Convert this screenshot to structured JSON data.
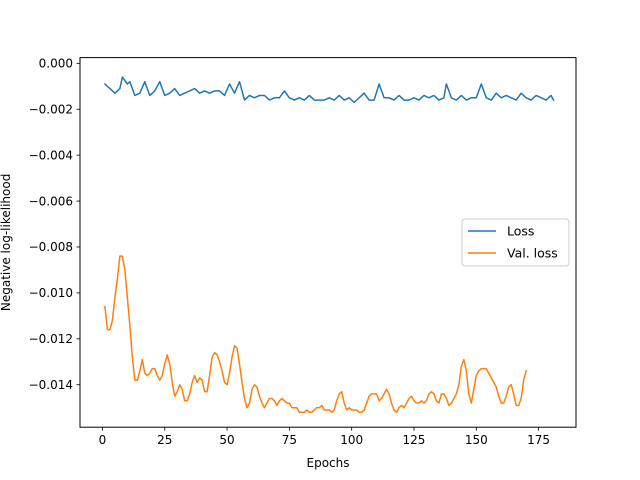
{
  "chart_data": {
    "type": "line",
    "title": "",
    "xlabel": "Epochs",
    "ylabel": "Negative log-likelihood",
    "xlim": [
      -9,
      190
    ],
    "ylim": [
      -0.01585,
      0.00025
    ],
    "xticks": [
      0,
      25,
      50,
      75,
      100,
      125,
      150,
      175
    ],
    "xtick_labels": [
      "0",
      "25",
      "50",
      "75",
      "100",
      "125",
      "150",
      "175"
    ],
    "yticks": [
      0.0,
      -0.002,
      -0.004,
      -0.006,
      -0.008,
      -0.01,
      -0.012,
      -0.014
    ],
    "ytick_labels": [
      "0.000",
      "−0.002",
      "−0.004",
      "−0.006",
      "−0.008",
      "−0.010",
      "−0.012",
      "−0.014"
    ],
    "grid": false,
    "legend_position": "center-right",
    "series": [
      {
        "name": "Loss",
        "color": "#1f77b4",
        "points": [
          [
            1,
            -0.0009
          ],
          [
            3,
            -0.0011
          ],
          [
            5,
            -0.0013
          ],
          [
            7,
            -0.0011
          ],
          [
            8,
            -0.0006
          ],
          [
            10,
            -0.0009
          ],
          [
            11,
            -0.0008
          ],
          [
            13,
            -0.0014
          ],
          [
            15,
            -0.0013
          ],
          [
            17,
            -0.0008
          ],
          [
            19,
            -0.0014
          ],
          [
            21,
            -0.0012
          ],
          [
            23,
            -0.0008
          ],
          [
            25,
            -0.0014
          ],
          [
            27,
            -0.0013
          ],
          [
            29,
            -0.0011
          ],
          [
            31,
            -0.0014
          ],
          [
            33,
            -0.0013
          ],
          [
            35,
            -0.0012
          ],
          [
            37,
            -0.0011
          ],
          [
            39,
            -0.0013
          ],
          [
            41,
            -0.0012
          ],
          [
            43,
            -0.0013
          ],
          [
            45,
            -0.0012
          ],
          [
            47,
            -0.0012
          ],
          [
            49,
            -0.0014
          ],
          [
            51,
            -0.0009
          ],
          [
            53,
            -0.0013
          ],
          [
            55,
            -0.0008
          ],
          [
            57,
            -0.0016
          ],
          [
            59,
            -0.0014
          ],
          [
            61,
            -0.0015
          ],
          [
            63,
            -0.0014
          ],
          [
            65,
            -0.0014
          ],
          [
            67,
            -0.0016
          ],
          [
            69,
            -0.0015
          ],
          [
            71,
            -0.0015
          ],
          [
            73,
            -0.0012
          ],
          [
            75,
            -0.0015
          ],
          [
            77,
            -0.0016
          ],
          [
            79,
            -0.0015
          ],
          [
            81,
            -0.0016
          ],
          [
            83,
            -0.0014
          ],
          [
            85,
            -0.0016
          ],
          [
            87,
            -0.0016
          ],
          [
            89,
            -0.0016
          ],
          [
            91,
            -0.0015
          ],
          [
            93,
            -0.0016
          ],
          [
            95,
            -0.0014
          ],
          [
            97,
            -0.0016
          ],
          [
            99,
            -0.0015
          ],
          [
            101,
            -0.0017
          ],
          [
            103,
            -0.0015
          ],
          [
            105,
            -0.0013
          ],
          [
            107,
            -0.0016
          ],
          [
            109,
            -0.0016
          ],
          [
            111,
            -0.0009
          ],
          [
            113,
            -0.0015
          ],
          [
            115,
            -0.0015
          ],
          [
            117,
            -0.0016
          ],
          [
            119,
            -0.0014
          ],
          [
            121,
            -0.0016
          ],
          [
            123,
            -0.0016
          ],
          [
            125,
            -0.0015
          ],
          [
            127,
            -0.0016
          ],
          [
            129,
            -0.0014
          ],
          [
            131,
            -0.0015
          ],
          [
            133,
            -0.0014
          ],
          [
            135,
            -0.0016
          ],
          [
            137,
            -0.0015
          ],
          [
            138,
            -0.0009
          ],
          [
            140,
            -0.0015
          ],
          [
            142,
            -0.0016
          ],
          [
            144,
            -0.0014
          ],
          [
            146,
            -0.0016
          ],
          [
            148,
            -0.0015
          ],
          [
            150,
            -0.0015
          ],
          [
            152,
            -0.0009
          ],
          [
            154,
            -0.0015
          ],
          [
            156,
            -0.0016
          ],
          [
            158,
            -0.0013
          ],
          [
            160,
            -0.0015
          ],
          [
            162,
            -0.0014
          ],
          [
            164,
            -0.0015
          ],
          [
            166,
            -0.0016
          ],
          [
            168,
            -0.0013
          ],
          [
            170,
            -0.0015
          ],
          [
            172,
            -0.0016
          ],
          [
            174,
            -0.0014
          ],
          [
            176,
            -0.0015
          ],
          [
            178,
            -0.0016
          ],
          [
            180,
            -0.0014
          ],
          [
            181,
            -0.0016
          ]
        ]
      },
      {
        "name": "Val. loss",
        "color": "#ff7f0e",
        "points": [
          [
            1,
            -0.0106
          ],
          [
            2,
            -0.0116
          ],
          [
            3,
            -0.0116
          ],
          [
            4,
            -0.0112
          ],
          [
            5,
            -0.0102
          ],
          [
            6,
            -0.0094
          ],
          [
            7,
            -0.0084
          ],
          [
            8,
            -0.0084
          ],
          [
            9,
            -0.009
          ],
          [
            10,
            -0.0102
          ],
          [
            11,
            -0.0114
          ],
          [
            12,
            -0.0128
          ],
          [
            13,
            -0.0138
          ],
          [
            14,
            -0.0138
          ],
          [
            15,
            -0.0134
          ],
          [
            16,
            -0.0129
          ],
          [
            17,
            -0.0135
          ],
          [
            18,
            -0.0136
          ],
          [
            19,
            -0.0135
          ],
          [
            20,
            -0.0133
          ],
          [
            21,
            -0.0133
          ],
          [
            22,
            -0.0136
          ],
          [
            23,
            -0.0138
          ],
          [
            24,
            -0.0136
          ],
          [
            25,
            -0.0131
          ],
          [
            26,
            -0.0127
          ],
          [
            27,
            -0.0131
          ],
          [
            28,
            -0.0139
          ],
          [
            29,
            -0.0145
          ],
          [
            30,
            -0.0143
          ],
          [
            31,
            -0.014
          ],
          [
            32,
            -0.0142
          ],
          [
            33,
            -0.0147
          ],
          [
            34,
            -0.0147
          ],
          [
            35,
            -0.0144
          ],
          [
            36,
            -0.0139
          ],
          [
            37,
            -0.0136
          ],
          [
            38,
            -0.0139
          ],
          [
            39,
            -0.0137
          ],
          [
            40,
            -0.0138
          ],
          [
            41,
            -0.0143
          ],
          [
            42,
            -0.0143
          ],
          [
            43,
            -0.0136
          ],
          [
            44,
            -0.0128
          ],
          [
            45,
            -0.0126
          ],
          [
            46,
            -0.0127
          ],
          [
            47,
            -0.013
          ],
          [
            48,
            -0.0134
          ],
          [
            49,
            -0.0139
          ],
          [
            50,
            -0.014
          ],
          [
            51,
            -0.0135
          ],
          [
            52,
            -0.0128
          ],
          [
            53,
            -0.0123
          ],
          [
            54,
            -0.0124
          ],
          [
            55,
            -0.0131
          ],
          [
            56,
            -0.0139
          ],
          [
            57,
            -0.0146
          ],
          [
            58,
            -0.015
          ],
          [
            59,
            -0.0148
          ],
          [
            60,
            -0.0142
          ],
          [
            61,
            -0.014
          ],
          [
            62,
            -0.0141
          ],
          [
            63,
            -0.0145
          ],
          [
            64,
            -0.0148
          ],
          [
            65,
            -0.015
          ],
          [
            66,
            -0.0148
          ],
          [
            67,
            -0.0146
          ],
          [
            68,
            -0.0146
          ],
          [
            69,
            -0.0147
          ],
          [
            70,
            -0.0149
          ],
          [
            71,
            -0.0147
          ],
          [
            72,
            -0.0146
          ],
          [
            73,
            -0.0147
          ],
          [
            74,
            -0.0148
          ],
          [
            75,
            -0.0148
          ],
          [
            76,
            -0.015
          ],
          [
            77,
            -0.015
          ],
          [
            78,
            -0.015
          ],
          [
            79,
            -0.0152
          ],
          [
            80,
            -0.0152
          ],
          [
            81,
            -0.0152
          ],
          [
            82,
            -0.0151
          ],
          [
            83,
            -0.0152
          ],
          [
            84,
            -0.0152
          ],
          [
            85,
            -0.0151
          ],
          [
            86,
            -0.015
          ],
          [
            87,
            -0.015
          ],
          [
            88,
            -0.0149
          ],
          [
            89,
            -0.0151
          ],
          [
            90,
            -0.0151
          ],
          [
            91,
            -0.0151
          ],
          [
            92,
            -0.0152
          ],
          [
            93,
            -0.0151
          ],
          [
            94,
            -0.0147
          ],
          [
            95,
            -0.0144
          ],
          [
            96,
            -0.0143
          ],
          [
            97,
            -0.0148
          ],
          [
            98,
            -0.0151
          ],
          [
            99,
            -0.015
          ],
          [
            100,
            -0.0151
          ],
          [
            101,
            -0.0151
          ],
          [
            102,
            -0.0151
          ],
          [
            103,
            -0.0152
          ],
          [
            104,
            -0.0152
          ],
          [
            105,
            -0.0151
          ],
          [
            106,
            -0.0148
          ],
          [
            107,
            -0.0145
          ],
          [
            108,
            -0.0144
          ],
          [
            109,
            -0.0144
          ],
          [
            110,
            -0.0144
          ],
          [
            111,
            -0.0147
          ],
          [
            112,
            -0.0146
          ],
          [
            113,
            -0.0144
          ],
          [
            114,
            -0.0142
          ],
          [
            115,
            -0.0144
          ],
          [
            116,
            -0.0148
          ],
          [
            117,
            -0.0151
          ],
          [
            118,
            -0.0152
          ],
          [
            119,
            -0.015
          ],
          [
            120,
            -0.0149
          ],
          [
            121,
            -0.015
          ],
          [
            122,
            -0.0148
          ],
          [
            123,
            -0.0146
          ],
          [
            124,
            -0.0145
          ],
          [
            125,
            -0.0147
          ],
          [
            126,
            -0.0148
          ],
          [
            127,
            -0.0148
          ],
          [
            128,
            -0.0147
          ],
          [
            129,
            -0.0148
          ],
          [
            130,
            -0.0147
          ],
          [
            131,
            -0.0144
          ],
          [
            132,
            -0.0143
          ],
          [
            133,
            -0.0144
          ],
          [
            134,
            -0.0147
          ],
          [
            135,
            -0.0148
          ],
          [
            136,
            -0.0144
          ],
          [
            137,
            -0.0144
          ],
          [
            138,
            -0.0146
          ],
          [
            139,
            -0.0149
          ],
          [
            140,
            -0.0148
          ],
          [
            141,
            -0.0146
          ],
          [
            142,
            -0.0144
          ],
          [
            143,
            -0.014
          ],
          [
            144,
            -0.0132
          ],
          [
            145,
            -0.0129
          ],
          [
            146,
            -0.0134
          ],
          [
            147,
            -0.0144
          ],
          [
            148,
            -0.0148
          ],
          [
            149,
            -0.0142
          ],
          [
            150,
            -0.0136
          ],
          [
            151,
            -0.0134
          ],
          [
            152,
            -0.0133
          ],
          [
            153,
            -0.0133
          ],
          [
            154,
            -0.0133
          ],
          [
            155,
            -0.0135
          ],
          [
            156,
            -0.0137
          ],
          [
            157,
            -0.0139
          ],
          [
            158,
            -0.0141
          ],
          [
            159,
            -0.0145
          ],
          [
            160,
            -0.0148
          ],
          [
            161,
            -0.0148
          ],
          [
            162,
            -0.0145
          ],
          [
            163,
            -0.0141
          ],
          [
            164,
            -0.014
          ],
          [
            165,
            -0.0144
          ],
          [
            166,
            -0.0149
          ],
          [
            167,
            -0.0149
          ],
          [
            168,
            -0.0146
          ],
          [
            169,
            -0.0138
          ],
          [
            170,
            -0.0134
          ]
        ]
      }
    ]
  }
}
